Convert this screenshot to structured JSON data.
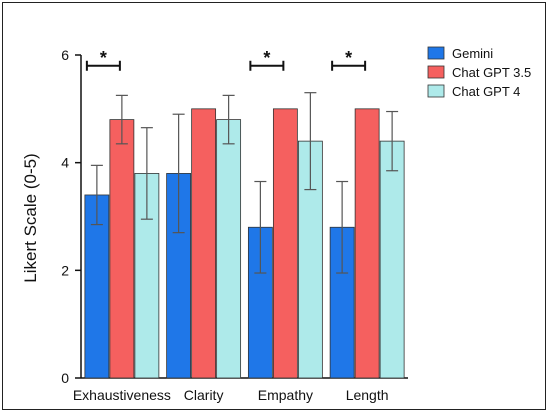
{
  "chart_data": {
    "type": "bar",
    "title": "",
    "xlabel": "",
    "ylabel": "Likert Scale (0-5)",
    "ylim": [
      0,
      6
    ],
    "yticks": [
      "0",
      "2",
      "4",
      "6"
    ],
    "categories": [
      "Exhaustiveness",
      "Clarity",
      "Empathy",
      "Length"
    ],
    "series": [
      {
        "name": "Gemini",
        "color": "#1f77e8",
        "values": [
          3.4,
          3.8,
          2.8,
          2.8
        ],
        "err": [
          0.55,
          1.1,
          0.85,
          0.85
        ]
      },
      {
        "name": "Chat GPT 3.5",
        "color": "#f5605f",
        "values": [
          4.8,
          5.0,
          5.0,
          5.0
        ],
        "err": [
          0.45,
          0,
          0,
          0
        ]
      },
      {
        "name": "Chat GPT 4",
        "color": "#aeeaea",
        "values": [
          3.8,
          4.8,
          4.4,
          4.4
        ],
        "err": [
          0.85,
          0.45,
          0.9,
          0.55
        ]
      }
    ],
    "significance": [
      {
        "category_index": 0,
        "label": "*"
      },
      {
        "category_index": 2,
        "label": "*"
      },
      {
        "category_index": 3,
        "label": "*"
      }
    ],
    "legend_position": "top-right",
    "grid": false
  }
}
